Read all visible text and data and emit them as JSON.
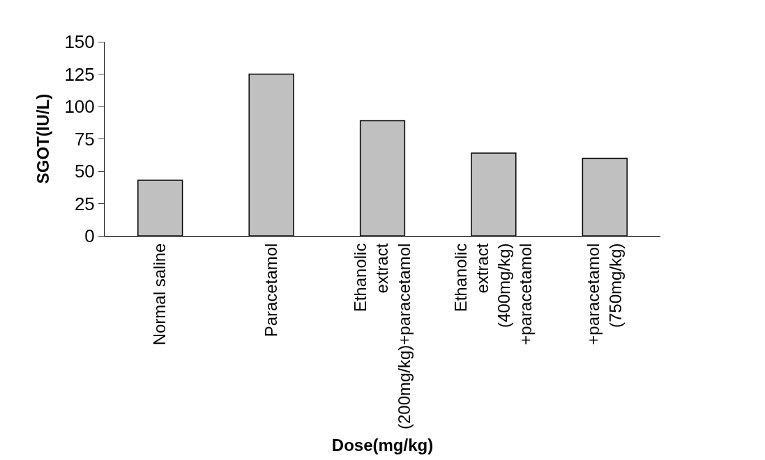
{
  "chart_data": {
    "type": "bar",
    "categories": [
      "Normal saline",
      "Paracetamol",
      "Ethanolic extract (200mg/kg)+paracetamol",
      "Ethanolic extract (400mg/kg) +paracetamol",
      "+paracetamol (750mg/kg)"
    ],
    "values": [
      43,
      125,
      89,
      64,
      60
    ],
    "color": "#c0c0c0",
    "xlabel": "Dose(mg/kg)",
    "ylabel": "SGOT(IU/L)",
    "ylim": [
      0,
      150
    ],
    "yticks": [
      0,
      25,
      50,
      75,
      100,
      125,
      150
    ]
  }
}
